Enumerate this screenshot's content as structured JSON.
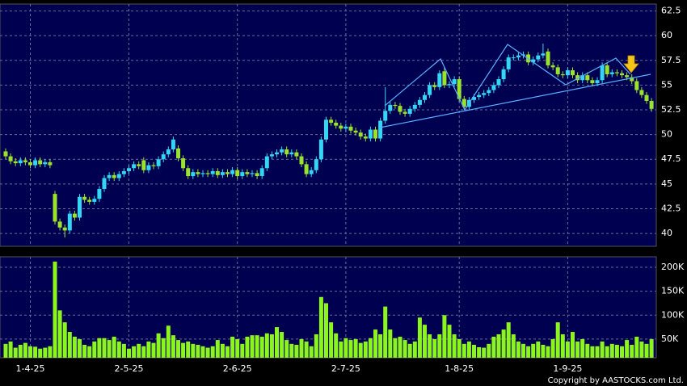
{
  "chart_data": [
    {
      "type": "candlestick",
      "up_color": "#33d6f5",
      "down_color": "#9be22d",
      "grid": true,
      "ylim": [
        38.7,
        63.2
      ],
      "yticks": [
        40,
        42.5,
        45,
        47.5,
        50,
        52.5,
        55,
        57.5,
        60,
        62.5
      ],
      "open": [
        48.3,
        47.8,
        47.3,
        47.1,
        47.4,
        47.2,
        46.9,
        47.4,
        47.0,
        47.2,
        44.0,
        41.2,
        40.6,
        40.3,
        42.0,
        41.6,
        43.7,
        43.4,
        43.2,
        43.5,
        44.5,
        45.6,
        45.9,
        45.6,
        46.0,
        46.3,
        46.6,
        47.0,
        47.4,
        46.4,
        46.9,
        46.8,
        47.5,
        48.0,
        48.5,
        48.6,
        47.6,
        46.6,
        45.8,
        46.2,
        46.0,
        46.1,
        46.0,
        46.3,
        45.9,
        46.2,
        46.0,
        46.4,
        45.8,
        46.2,
        46.0,
        46.1,
        45.8,
        46.6,
        47.8,
        48.0,
        48.2,
        48.5,
        48.0,
        48.2,
        47.8,
        47.0,
        46.0,
        46.4,
        47.5,
        49.5,
        51.5,
        51.2,
        50.9,
        50.6,
        50.8,
        50.4,
        50.2,
        49.8,
        49.6,
        50.5,
        49.6,
        51.4,
        52.4,
        53.0,
        52.9,
        52.3,
        52.1,
        52.6,
        53.0,
        53.5,
        54.0,
        55.0,
        54.8,
        56.4,
        55.0,
        55.1,
        55.6,
        53.6,
        52.8,
        53.5,
        53.8,
        54.0,
        54.2,
        54.5,
        55.0,
        55.6,
        56.6,
        57.8,
        57.8,
        58.0,
        58.1,
        57.3,
        57.6,
        58.0,
        58.4,
        57.0,
        56.8,
        56.1,
        56.0,
        56.5,
        56.0,
        55.5,
        56.0,
        55.5,
        55.2,
        55.5,
        57.0,
        56.1,
        56.3,
        56.2,
        56.0,
        55.8,
        55.4,
        54.5,
        54.0,
        53.4
      ],
      "high": [
        48.6,
        48.1,
        47.6,
        47.7,
        47.7,
        47.5,
        47.7,
        47.7,
        47.5,
        47.5,
        44.3,
        41.5,
        40.9,
        42.3,
        42.3,
        44.0,
        44.0,
        43.7,
        43.8,
        44.8,
        45.9,
        46.2,
        46.2,
        46.3,
        46.6,
        46.9,
        47.3,
        47.3,
        47.7,
        47.2,
        47.2,
        47.8,
        48.3,
        48.8,
        49.8,
        48.9,
        47.9,
        46.9,
        46.5,
        46.5,
        46.4,
        46.4,
        46.6,
        46.6,
        46.5,
        46.5,
        46.7,
        46.7,
        46.5,
        46.5,
        46.4,
        46.4,
        46.9,
        48.1,
        48.3,
        48.5,
        48.8,
        48.8,
        48.5,
        48.5,
        48.1,
        47.3,
        46.7,
        47.8,
        49.8,
        51.8,
        51.8,
        51.5,
        51.2,
        51.1,
        51.1,
        50.7,
        50.5,
        50.1,
        50.8,
        50.8,
        51.7,
        54.8,
        53.3,
        53.3,
        53.2,
        52.6,
        52.9,
        53.3,
        53.8,
        54.3,
        55.3,
        55.3,
        56.5,
        56.8,
        55.4,
        55.9,
        55.9,
        53.9,
        53.8,
        54.1,
        54.3,
        54.5,
        54.8,
        55.3,
        55.9,
        56.9,
        58.1,
        58.1,
        58.3,
        58.4,
        58.4,
        57.9,
        58.3,
        59.2,
        58.7,
        57.3,
        57.1,
        56.4,
        56.8,
        56.8,
        56.3,
        56.3,
        56.3,
        55.8,
        55.8,
        57.3,
        57.3,
        56.6,
        56.6,
        56.5,
        56.3,
        56.1,
        55.7,
        54.8,
        54.3,
        53.7
      ],
      "low": [
        47.5,
        47.0,
        46.8,
        46.8,
        46.9,
        46.6,
        46.6,
        46.7,
        46.7,
        46.6,
        40.9,
        40.3,
        39.6,
        40.0,
        41.3,
        41.3,
        43.1,
        42.9,
        42.9,
        43.2,
        44.2,
        45.3,
        45.3,
        45.3,
        45.7,
        46.0,
        46.3,
        46.5,
        46.1,
        46.1,
        46.5,
        46.5,
        47.2,
        47.7,
        48.2,
        47.3,
        46.3,
        45.5,
        45.5,
        45.7,
        45.7,
        45.7,
        45.7,
        45.6,
        45.6,
        45.7,
        45.7,
        45.5,
        45.5,
        45.7,
        45.7,
        45.5,
        45.5,
        46.3,
        47.5,
        47.7,
        47.9,
        47.7,
        47.7,
        47.5,
        46.7,
        45.7,
        45.7,
        46.1,
        47.2,
        49.2,
        50.9,
        50.6,
        50.3,
        50.3,
        50.1,
        49.9,
        49.5,
        49.3,
        49.3,
        49.3,
        49.3,
        51.1,
        52.1,
        52.6,
        52.0,
        51.8,
        51.8,
        52.3,
        52.7,
        53.2,
        53.7,
        54.5,
        54.5,
        54.7,
        54.7,
        54.8,
        53.3,
        52.5,
        52.5,
        53.2,
        53.5,
        53.7,
        53.9,
        54.2,
        54.7,
        55.3,
        56.3,
        57.5,
        57.5,
        57.7,
        57.0,
        57.0,
        57.3,
        57.7,
        56.7,
        56.5,
        55.8,
        55.7,
        55.7,
        55.7,
        55.2,
        55.2,
        55.2,
        54.9,
        54.9,
        55.2,
        55.8,
        55.8,
        55.9,
        55.7,
        55.5,
        55.1,
        54.2,
        53.7,
        53.1,
        52.3
      ],
      "close": [
        47.8,
        47.3,
        47.1,
        47.4,
        47.2,
        46.9,
        47.4,
        47.0,
        47.2,
        46.9,
        41.2,
        40.6,
        40.3,
        42.0,
        41.6,
        43.7,
        43.4,
        43.2,
        43.5,
        44.5,
        45.6,
        45.9,
        45.6,
        46.0,
        46.3,
        46.6,
        47.0,
        46.8,
        46.4,
        46.9,
        46.8,
        47.5,
        48.0,
        48.5,
        49.5,
        47.6,
        46.6,
        45.8,
        46.2,
        46.0,
        46.1,
        46.0,
        46.3,
        45.9,
        46.2,
        46.0,
        46.4,
        45.8,
        46.2,
        46.0,
        46.1,
        45.8,
        46.6,
        47.8,
        48.0,
        48.2,
        48.5,
        48.0,
        48.2,
        47.8,
        47.0,
        46.0,
        46.4,
        47.5,
        49.5,
        51.5,
        51.2,
        50.9,
        50.6,
        50.8,
        50.4,
        50.2,
        49.8,
        49.6,
        50.5,
        49.6,
        51.4,
        52.4,
        53.0,
        52.9,
        52.3,
        52.1,
        52.6,
        53.0,
        53.5,
        54.0,
        55.0,
        54.8,
        56.2,
        55.0,
        55.1,
        55.6,
        53.6,
        52.8,
        53.5,
        53.8,
        54.0,
        54.2,
        54.5,
        55.0,
        55.6,
        56.6,
        57.8,
        57.8,
        58.0,
        58.1,
        57.3,
        57.6,
        58.0,
        58.2,
        57.0,
        56.8,
        56.1,
        56.0,
        56.5,
        56.0,
        55.5,
        56.0,
        55.5,
        55.2,
        55.5,
        57.0,
        56.1,
        56.3,
        56.2,
        56.0,
        55.8,
        55.4,
        54.5,
        54.0,
        53.4,
        52.6
      ]
    },
    {
      "type": "bar",
      "color": "#8cf51e",
      "grid": true,
      "ylim": [
        11000,
        222000
      ],
      "yticks": [
        {
          "value": 50000,
          "label": "50K"
        },
        {
          "value": 100000,
          "label": "100K"
        },
        {
          "value": 150000,
          "label": "150K"
        },
        {
          "value": 200000,
          "label": "200K"
        }
      ],
      "categories": [
        null,
        null,
        null,
        null,
        null,
        "1-4-25",
        null,
        null,
        null,
        null,
        null,
        null,
        null,
        null,
        null,
        null,
        null,
        null,
        null,
        null,
        null,
        null,
        null,
        null,
        null,
        "2-5-25",
        null,
        null,
        null,
        null,
        null,
        null,
        null,
        null,
        null,
        null,
        null,
        null,
        null,
        null,
        null,
        null,
        null,
        null,
        null,
        null,
        null,
        "2-6-25",
        null,
        null,
        null,
        null,
        null,
        null,
        null,
        null,
        null,
        null,
        null,
        null,
        null,
        null,
        null,
        null,
        null,
        null,
        null,
        null,
        null,
        "2-7-25",
        null,
        null,
        null,
        null,
        null,
        null,
        null,
        null,
        null,
        null,
        null,
        null,
        null,
        null,
        null,
        null,
        null,
        null,
        null,
        null,
        null,
        null,
        "1-8-25",
        null,
        null,
        null,
        null,
        null,
        null,
        null,
        null,
        null,
        null,
        null,
        null,
        null,
        null,
        null,
        null,
        null,
        null,
        null,
        null,
        null,
        "1-9-25",
        null,
        null,
        null,
        null,
        null,
        null,
        null,
        null,
        null,
        null,
        null,
        null,
        null,
        null,
        null,
        null,
        null
      ],
      "values": [
        40000,
        45000,
        32000,
        38000,
        42000,
        35000,
        34000,
        30000,
        32000,
        35000,
        212000,
        110000,
        85000,
        65000,
        55000,
        50000,
        38000,
        35000,
        45000,
        52000,
        52000,
        48000,
        55000,
        45000,
        40000,
        30000,
        35000,
        40000,
        35000,
        45000,
        42000,
        62000,
        52000,
        78000,
        58000,
        48000,
        42000,
        45000,
        40000,
        38000,
        35000,
        32000,
        35000,
        48000,
        40000,
        35000,
        55000,
        50000,
        40000,
        55000,
        58000,
        58000,
        55000,
        62000,
        60000,
        75000,
        65000,
        48000,
        40000,
        38000,
        50000,
        45000,
        35000,
        60000,
        138000,
        125000,
        85000,
        62000,
        45000,
        52000,
        48000,
        50000,
        42000,
        45000,
        52000,
        70000,
        60000,
        118000,
        70000,
        52000,
        55000,
        48000,
        40000,
        45000,
        95000,
        80000,
        60000,
        50000,
        60000,
        100000,
        80000,
        60000,
        50000,
        40000,
        45000,
        38000,
        33000,
        32000,
        40000,
        55000,
        60000,
        70000,
        85000,
        60000,
        45000,
        40000,
        35000,
        40000,
        45000,
        38000,
        35000,
        50000,
        85000,
        60000,
        45000,
        65000,
        45000,
        50000,
        40000,
        35000,
        35000,
        45000,
        35000,
        40000,
        38000,
        35000,
        48000,
        38000,
        55000,
        45000,
        40000,
        50000
      ]
    }
  ],
  "copyright": "Copyright by AASTOCKS.com Ltd."
}
